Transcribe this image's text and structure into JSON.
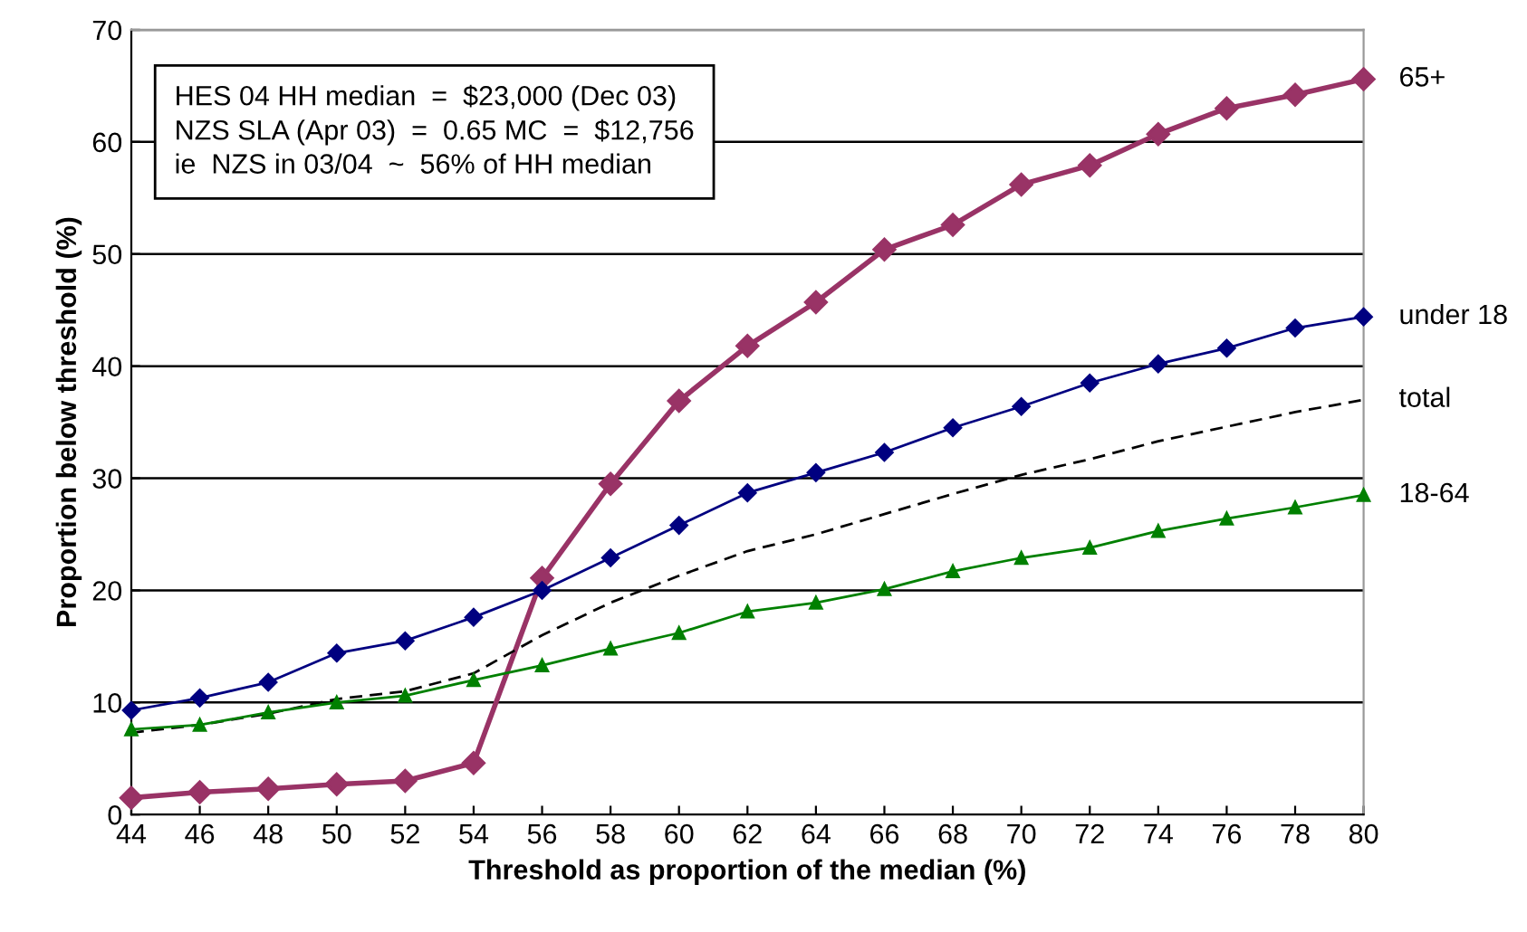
{
  "chart_data": {
    "type": "line",
    "xlabel": "Threshold as proportion of the median (%)",
    "ylabel": "Proportion below threshold (%)",
    "x": [
      44,
      46,
      48,
      50,
      52,
      54,
      56,
      58,
      60,
      62,
      64,
      66,
      68,
      70,
      72,
      74,
      76,
      78,
      80
    ],
    "xlim": [
      44,
      80
    ],
    "xticks": [
      44,
      46,
      48,
      50,
      52,
      54,
      56,
      58,
      60,
      62,
      64,
      66,
      68,
      70,
      72,
      74,
      76,
      78,
      80
    ],
    "ylim": [
      0,
      70
    ],
    "yticks": [
      0,
      10,
      20,
      30,
      40,
      50,
      60,
      70
    ],
    "grid": "y",
    "legend": false,
    "series": [
      {
        "name": "65+",
        "color": "#993366",
        "marker": "diamond",
        "line_style": "solid",
        "values": [
          1.5,
          2.0,
          2.3,
          2.7,
          3.0,
          4.6,
          21.1,
          29.5,
          36.9,
          41.8,
          45.7,
          50.4,
          52.6,
          56.2,
          57.9,
          60.7,
          63.0,
          64.2,
          65.6
        ]
      },
      {
        "name": "under 18",
        "color": "#000080",
        "marker": "diamond",
        "line_style": "solid",
        "values": [
          9.3,
          10.4,
          11.8,
          14.4,
          15.5,
          17.6,
          20.0,
          22.9,
          25.8,
          28.7,
          30.5,
          32.3,
          34.5,
          36.4,
          38.5,
          40.2,
          41.6,
          43.4,
          44.4
        ]
      },
      {
        "name": "total",
        "color": "#000000",
        "marker": "none",
        "line_style": "dashed",
        "values": [
          7.3,
          8.0,
          9.0,
          10.3,
          11.0,
          12.6,
          16.0,
          18.9,
          21.3,
          23.5,
          25.0,
          26.8,
          28.6,
          30.3,
          31.7,
          33.3,
          34.6,
          35.9,
          37.0
        ]
      },
      {
        "name": "18-64",
        "color": "#008000",
        "marker": "triangle",
        "line_style": "solid",
        "values": [
          7.6,
          8.0,
          9.1,
          10.0,
          10.6,
          12.0,
          13.3,
          14.8,
          16.2,
          18.1,
          18.9,
          20.1,
          21.7,
          22.9,
          23.8,
          25.3,
          26.4,
          27.4,
          28.5
        ]
      }
    ],
    "annotations": [
      "HES 04 HH median  =  $23,000 (Dec 03)\nNZS SLA (Apr 03)  =  0.65 MC  =  $12,756\nie  NZS in 03/04  ~  56% of HH median"
    ]
  }
}
